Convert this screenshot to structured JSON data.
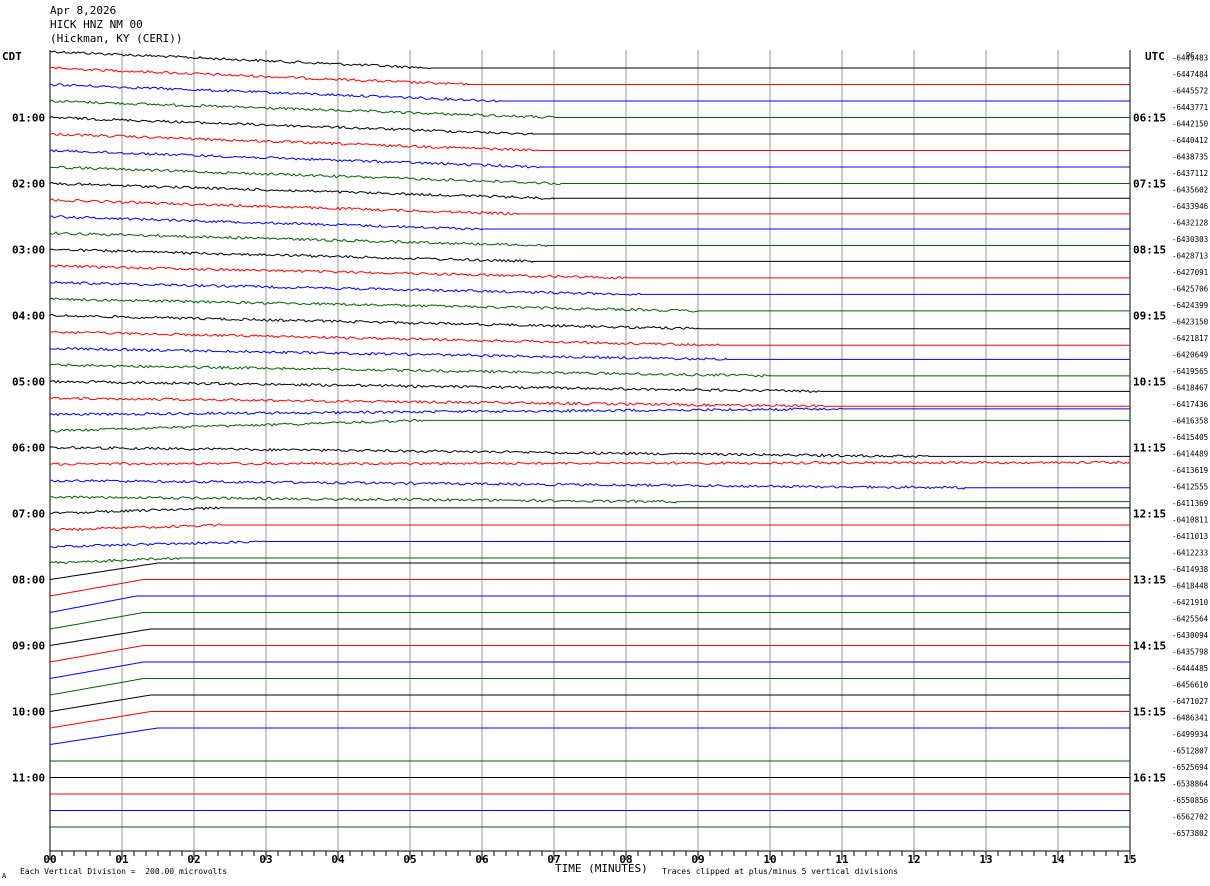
{
  "header": {
    "date": "Apr 8,2026",
    "station": "HICK HNZ NM 00",
    "location": "(Hickman, KY (CERI))"
  },
  "left_axis_label": "CDT",
  "right_axis_label": "UTC",
  "dc_label": "DC",
  "footer": {
    "scale_note": "Each Vertical Division =  200.00 microvolts",
    "clip_note": "Traces clipped at plus/minus 5 vertical divisions",
    "corner_mark": "A"
  },
  "chart_data": {
    "type": "line",
    "title": "",
    "xlabel": "TIME (MINUTES)",
    "ylabel": "",
    "xlim": [
      0,
      15
    ],
    "x_ticks": [
      "00",
      "01",
      "02",
      "03",
      "04",
      "05",
      "06",
      "07",
      "08",
      "09",
      "10",
      "11",
      "12",
      "13",
      "14",
      "15"
    ],
    "grid": true,
    "trace_colors": [
      "#000000",
      "#ff0000",
      "#0000ff",
      "#006400"
    ],
    "trace_interval_minutes": 15,
    "trace_count": 48,
    "left_time_labels": [
      {
        "text": "01:00",
        "trace": 4
      },
      {
        "text": "02:00",
        "trace": 8
      },
      {
        "text": "03:00",
        "trace": 12
      },
      {
        "text": "04:00",
        "trace": 16
      },
      {
        "text": "05:00",
        "trace": 20
      },
      {
        "text": "06:00",
        "trace": 24
      },
      {
        "text": "07:00",
        "trace": 28
      },
      {
        "text": "08:00",
        "trace": 32
      },
      {
        "text": "09:00",
        "trace": 36
      },
      {
        "text": "10:00",
        "trace": 40
      },
      {
        "text": "11:00",
        "trace": 44
      }
    ],
    "right_time_labels": [
      {
        "text": "06:15",
        "trace": 4
      },
      {
        "text": "07:15",
        "trace": 8
      },
      {
        "text": "08:15",
        "trace": 12
      },
      {
        "text": "09:15",
        "trace": 16
      },
      {
        "text": "10:15",
        "trace": 20
      },
      {
        "text": "11:15",
        "trace": 24
      },
      {
        "text": "12:15",
        "trace": 28
      },
      {
        "text": "13:15",
        "trace": 32
      },
      {
        "text": "14:15",
        "trace": 36
      },
      {
        "text": "15:15",
        "trace": 40
      },
      {
        "text": "16:15",
        "trace": 44
      }
    ],
    "dc_offsets": [
      "-6449483",
      "-6447484",
      "-6445572",
      "-6443771",
      "-6442150",
      "-6440412",
      "-6438735",
      "-6437112",
      "-6435602",
      "-6433946",
      "-6432128",
      "-6430303",
      "-6428713",
      "-6427091",
      "-6425706",
      "-6424399",
      "-6423150",
      "-6421817",
      "-6420649",
      "-6419565",
      "-6418467",
      "-6417436",
      "-6416358",
      "-6415405",
      "-6414489",
      "-6413619",
      "-6412555",
      "-6411369",
      "-6410811",
      "-6411013",
      "-6412233",
      "-6414938",
      "-6418448",
      "-6421910",
      "-6425564",
      "-6430094",
      "-6435798",
      "-6444485",
      "-6456610",
      "-6471027",
      "-6486341",
      "-6499934",
      "-6512807",
      "-6525694",
      "-6538864",
      "-6550856",
      "-6562702",
      "-6573802"
    ],
    "traces": [
      {
        "shape": "d",
        "x": [
          0,
          5.3
        ],
        "y": [
          0,
          -5
        ]
      },
      {
        "shape": "d",
        "x": [
          0,
          5.8
        ],
        "y": [
          0,
          -5
        ]
      },
      {
        "shape": "d",
        "x": [
          0,
          6.3
        ],
        "y": [
          0,
          -5
        ]
      },
      {
        "shape": "d",
        "x": [
          0,
          7.0
        ],
        "y": [
          0,
          -5
        ]
      },
      {
        "shape": "d",
        "x": [
          0,
          6.7
        ],
        "y": [
          0,
          -5
        ]
      },
      {
        "shape": "d",
        "x": [
          0,
          6.8
        ],
        "y": [
          0,
          -5
        ]
      },
      {
        "shape": "d",
        "x": [
          0,
          6.8
        ],
        "y": [
          0,
          -5
        ]
      },
      {
        "shape": "d",
        "x": [
          0,
          7.1
        ],
        "y": [
          0,
          -5
        ]
      },
      {
        "shape": "d",
        "x": [
          0,
          7.0
        ],
        "y": [
          0,
          -4.5
        ]
      },
      {
        "shape": "d",
        "x": [
          0,
          6.5
        ],
        "y": [
          0,
          -4.2
        ]
      },
      {
        "shape": "d",
        "x": [
          0,
          6.0
        ],
        "y": [
          0,
          -3.8
        ]
      },
      {
        "shape": "d",
        "x": [
          0,
          6.9
        ],
        "y": [
          0,
          -3.8
        ]
      },
      {
        "shape": "d",
        "x": [
          0,
          6.7
        ],
        "y": [
          0,
          -3.6
        ]
      },
      {
        "shape": "d",
        "x": [
          0,
          8.0
        ],
        "y": [
          0,
          -3.6
        ]
      },
      {
        "shape": "d",
        "x": [
          0,
          8.2
        ],
        "y": [
          0,
          -3.6
        ]
      },
      {
        "shape": "d",
        "x": [
          0,
          9.0
        ],
        "y": [
          0,
          -3.6
        ]
      },
      {
        "shape": "d",
        "x": [
          0,
          9.0
        ],
        "y": [
          0,
          -4.0
        ]
      },
      {
        "shape": "d",
        "x": [
          0,
          9.3
        ],
        "y": [
          0,
          -4.0
        ]
      },
      {
        "shape": "d",
        "x": [
          0,
          9.4
        ],
        "y": [
          0,
          -3.3
        ]
      },
      {
        "shape": "d",
        "x": [
          0,
          10.0
        ],
        "y": [
          0,
          -3.3
        ]
      },
      {
        "shape": "d",
        "x": [
          0,
          10.7
        ],
        "y": [
          0,
          -3.0
        ]
      },
      {
        "shape": "d",
        "x": [
          0,
          10.8
        ],
        "y": [
          0,
          -2.5
        ]
      },
      {
        "shape": "d",
        "x": [
          0,
          11.0
        ],
        "y": [
          0,
          1.7
        ]
      },
      {
        "shape": "d",
        "x": [
          0,
          5.2
        ],
        "y": [
          0,
          3.2
        ]
      },
      {
        "shape": "d",
        "x": [
          0,
          12.2
        ],
        "y": [
          0,
          -2.7
        ]
      },
      {
        "shape": "d",
        "x": [
          0,
          15.0
        ],
        "y": [
          0,
          0.5
        ]
      },
      {
        "shape": "d",
        "x": [
          0,
          12.7
        ],
        "y": [
          0,
          -2.2
        ]
      },
      {
        "shape": "d",
        "x": [
          0,
          8.7
        ],
        "y": [
          0,
          -1.4
        ]
      },
      {
        "shape": "d",
        "x": [
          0,
          2.4
        ],
        "y": [
          0,
          1.7
        ]
      },
      {
        "shape": "d",
        "x": [
          0,
          2.4
        ],
        "y": [
          0,
          1.5
        ]
      },
      {
        "shape": "d",
        "x": [
          0,
          3.0
        ],
        "y": [
          0,
          1.5
        ]
      },
      {
        "shape": "d",
        "x": [
          0,
          1.8
        ],
        "y": [
          0,
          1.5
        ]
      },
      {
        "shape": "r",
        "x": [
          0,
          1.5
        ],
        "y": [
          0,
          5
        ]
      },
      {
        "shape": "r",
        "x": [
          0,
          1.3
        ],
        "y": [
          0,
          5
        ]
      },
      {
        "shape": "r",
        "x": [
          0,
          1.2
        ],
        "y": [
          0,
          5
        ]
      },
      {
        "shape": "r",
        "x": [
          0,
          1.3
        ],
        "y": [
          0,
          5
        ]
      },
      {
        "shape": "r",
        "x": [
          0,
          1.4
        ],
        "y": [
          0,
          5
        ]
      },
      {
        "shape": "r",
        "x": [
          0,
          1.3
        ],
        "y": [
          0,
          5
        ]
      },
      {
        "shape": "r",
        "x": [
          0,
          1.3
        ],
        "y": [
          0,
          5
        ]
      },
      {
        "shape": "r",
        "x": [
          0,
          1.3
        ],
        "y": [
          0,
          5
        ]
      },
      {
        "shape": "r",
        "x": [
          0,
          1.4
        ],
        "y": [
          0,
          5
        ]
      },
      {
        "shape": "r",
        "x": [
          0,
          1.4
        ],
        "y": [
          0,
          5
        ]
      },
      {
        "shape": "r",
        "x": [
          0,
          1.5
        ],
        "y": [
          0,
          5
        ]
      },
      {
        "shape": "p",
        "x": [],
        "y": []
      },
      {
        "shape": "p",
        "x": [],
        "y": []
      },
      {
        "shape": "p",
        "x": [],
        "y": []
      },
      {
        "shape": "p",
        "x": [],
        "y": []
      },
      {
        "shape": "p",
        "x": [],
        "y": []
      }
    ]
  }
}
